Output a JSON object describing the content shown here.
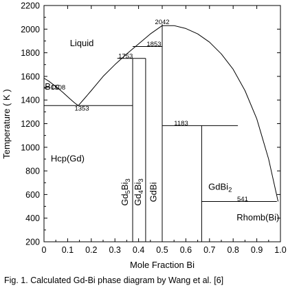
{
  "chart_data": {
    "type": "line",
    "xlabel": "Mole Fraction Bi",
    "ylabel": "Temperature ( K )",
    "xlim": [
      0,
      1
    ],
    "ylim": [
      200,
      2200
    ],
    "x_ticks": [
      "0",
      "0.1",
      "0.2",
      "0.3",
      "0.4",
      "0.5",
      "0.6",
      "0.7",
      "0.8",
      "0.9",
      "1.0"
    ],
    "y_ticks": [
      "200",
      "400",
      "600",
      "800",
      "1000",
      "1200",
      "1400",
      "1600",
      "1800",
      "2000",
      "2200"
    ],
    "grid": false,
    "series": [
      {
        "x": [
          0.0,
          0.02,
          0.05,
          0.08,
          0.11,
          0.13,
          0.145
        ],
        "y": [
          1585,
          1560,
          1515,
          1465,
          1410,
          1375,
          1353
        ]
      },
      {
        "x": [
          0.145,
          0.17,
          0.2,
          0.25,
          0.3,
          0.35,
          0.4,
          0.45,
          0.5,
          0.55,
          0.6,
          0.65,
          0.7,
          0.75,
          0.8,
          0.85,
          0.9,
          0.95,
          0.99
        ],
        "y": [
          1353,
          1410,
          1480,
          1600,
          1700,
          1790,
          1875,
          1960,
          2030,
          2030,
          2005,
          1960,
          1890,
          1790,
          1660,
          1480,
          1240,
          900,
          541
        ]
      },
      {
        "x": [
          0.0,
          0.025
        ],
        "y": [
          1508,
          1508
        ]
      },
      {
        "x": [
          0.0,
          0.375
        ],
        "y": [
          1353,
          1353
        ]
      },
      {
        "x": [
          0.31,
          0.43
        ],
        "y": [
          1753,
          1753
        ]
      },
      {
        "x": [
          0.375,
          0.5
        ],
        "y": [
          1853,
          1853
        ]
      },
      {
        "x": [
          0.5,
          0.82
        ],
        "y": [
          1183,
          1183
        ]
      },
      {
        "x": [
          0.667,
          0.985
        ],
        "y": [
          541,
          541
        ]
      },
      {
        "x": [
          0.375,
          0.375
        ],
        "y": [
          200,
          1753
        ]
      },
      {
        "x": [
          0.43,
          0.43
        ],
        "y": [
          200,
          1753
        ]
      },
      {
        "x": [
          0.5,
          0.5
        ],
        "y": [
          200,
          2042
        ]
      },
      {
        "x": [
          0.667,
          0.667
        ],
        "y": [
          200,
          1183
        ]
      }
    ],
    "temperature_labels": [
      {
        "text": "1508",
        "x": 0.06,
        "y": 1508
      },
      {
        "text": "1353",
        "x": 0.16,
        "y": 1330
      },
      {
        "text": "1753",
        "x": 0.345,
        "y": 1775
      },
      {
        "text": "1853",
        "x": 0.465,
        "y": 1875
      },
      {
        "text": "2042",
        "x": 0.5,
        "y": 2062
      },
      {
        "text": "1183",
        "x": 0.58,
        "y": 1205
      },
      {
        "text": "541",
        "x": 0.84,
        "y": 563
      }
    ],
    "phase_labels": [
      {
        "text": "Liquid",
        "x": 0.16,
        "y": 1855,
        "rotate": false
      },
      {
        "text": "Bcc",
        "x": 0.035,
        "y": 1490,
        "rotate": false
      },
      {
        "text": "Hcp(Gd)",
        "x": 0.1,
        "y": 880,
        "rotate": false
      },
      {
        "text": "Rhomb(Bi)",
        "x": 0.905,
        "y": 380,
        "rotate": false
      },
      {
        "text": "GdBi",
        "x": 0.475,
        "y": 620,
        "rotate": true
      },
      {
        "text": "Gd",
        "sub1": "5",
        "text2": "Bi",
        "sub2": "3",
        "x": 0.355,
        "y": 620,
        "rotate": true
      },
      {
        "text": "Gd",
        "sub1": "4",
        "text2": "Bi",
        "sub2": "3",
        "x": 0.41,
        "y": 620,
        "rotate": true
      },
      {
        "text": "GdBi",
        "sub1": "2",
        "x": 0.745,
        "y": 640,
        "rotate": false
      }
    ]
  },
  "caption": "Fig. 1. Calculated Gd-Bi phase diagram by Wang et al. [6]"
}
